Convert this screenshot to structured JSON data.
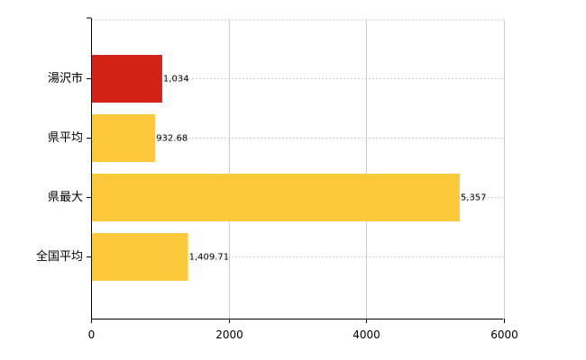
{
  "chart_data": {
    "type": "bar",
    "orientation": "horizontal",
    "categories": [
      "湯沢市",
      "県平均",
      "県最大",
      "全国平均"
    ],
    "values": [
      1034,
      932.68,
      5357,
      1409.71
    ],
    "value_labels": [
      "1,034",
      "932.68",
      "5,357",
      "1,409.71"
    ],
    "colors": [
      "#d42316",
      "#fcc93a",
      "#fcc93a",
      "#fcc93a"
    ],
    "xlim": [
      0,
      6000
    ],
    "xticks": [
      0,
      2000,
      4000,
      6000
    ],
    "xtick_labels": [
      "0",
      "2000",
      "4000",
      "6000"
    ],
    "grid": true,
    "title": "",
    "xlabel": "",
    "ylabel": ""
  }
}
